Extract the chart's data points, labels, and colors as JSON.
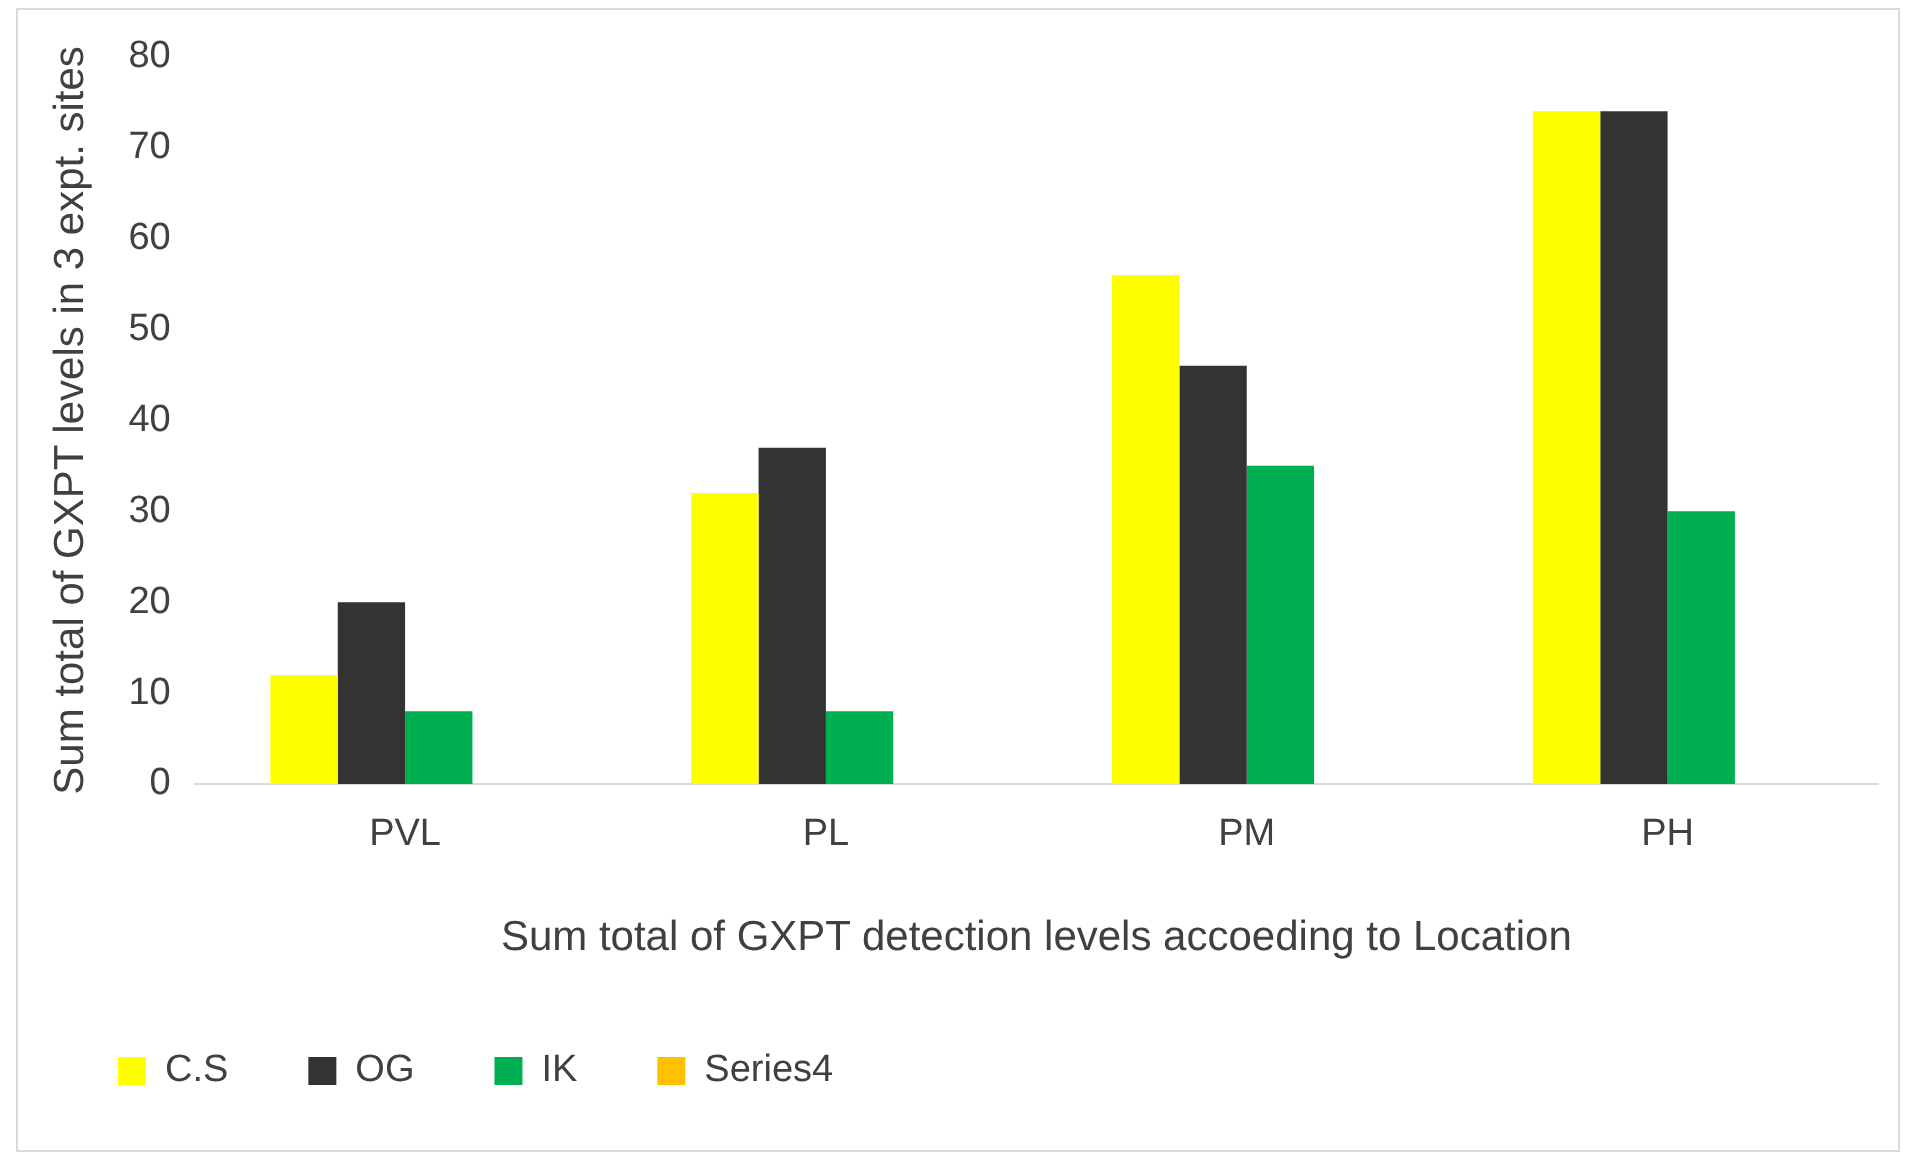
{
  "chart_data": {
    "type": "bar",
    "xlabel": "Sum total of GXPT detection levels accoeding to Location",
    "ylabel": "Sum total of GXPT levels in 3 expt. sites",
    "categories": [
      "PVL",
      "PL",
      "PM",
      "PH"
    ],
    "series": [
      {
        "name": "C.S",
        "color": "#ffff00",
        "values": [
          12,
          32,
          56,
          74
        ]
      },
      {
        "name": "OG",
        "color": "#333333",
        "values": [
          20,
          37,
          46,
          74
        ]
      },
      {
        "name": "IK",
        "color": "#00b050",
        "values": [
          8,
          8,
          35,
          30
        ]
      },
      {
        "name": "Series4",
        "color": "#ffc000",
        "values": [
          null,
          null,
          null,
          null
        ]
      }
    ],
    "ylim": [
      0,
      80
    ],
    "yticks": [
      0,
      10,
      20,
      30,
      40,
      50,
      60,
      70,
      80
    ],
    "grid": false,
    "legend": "bottom"
  }
}
